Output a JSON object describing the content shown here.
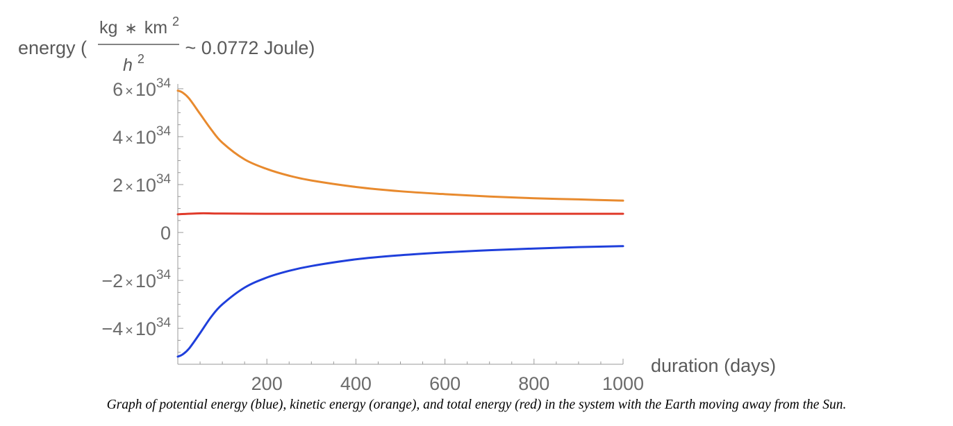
{
  "chart_data": {
    "type": "line",
    "ylabel": {
      "prefix": "energy (",
      "frac_num_main": "kg",
      "frac_num_op": "∗",
      "frac_num_unit": "km",
      "frac_num_exp": "2",
      "frac_den_main": "h",
      "frac_den_exp": "2",
      "suffix": " ~ 0.0772 Joule)"
    },
    "xlabel": "duration (days)",
    "xlim": [
      0,
      1000
    ],
    "ylim": [
      -5.5e+34,
      6.2e+34
    ],
    "x_ticks": [
      {
        "value": 200,
        "label": "200"
      },
      {
        "value": 400,
        "label": "400"
      },
      {
        "value": 600,
        "label": "600"
      },
      {
        "value": 800,
        "label": "800"
      },
      {
        "value": 1000,
        "label": "1000"
      }
    ],
    "y_ticks": [
      {
        "value": 6e+34,
        "mant": "6",
        "times": "×",
        "base": "10",
        "exp": "34"
      },
      {
        "value": 4e+34,
        "mant": "4",
        "times": "×",
        "base": "10",
        "exp": "34"
      },
      {
        "value": 2e+34,
        "mant": "2",
        "times": "×",
        "base": "10",
        "exp": "34"
      },
      {
        "value": 0,
        "mant": "0",
        "times": "",
        "base": "",
        "exp": ""
      },
      {
        "value": -2e+34,
        "mant": "−2",
        "times": "×",
        "base": "10",
        "exp": "34"
      },
      {
        "value": -4e+34,
        "mant": "−4",
        "times": "×",
        "base": "10",
        "exp": "34"
      }
    ],
    "series": [
      {
        "color": "#e88a2e",
        "x": [
          0,
          10,
          25,
          50,
          75,
          100,
          150,
          200,
          250,
          300,
          400,
          500,
          600,
          700,
          800,
          900,
          1000
        ],
        "y": [
          5.92e+34,
          5.85e+34,
          5.6e+34,
          4.95e+34,
          4.3e+34,
          3.75e+34,
          3.05e+34,
          2.65e+34,
          2.37e+34,
          2.17e+34,
          1.9e+34,
          1.72e+34,
          1.6e+34,
          1.5e+34,
          1.43e+34,
          1.38e+34,
          1.33e+34
        ]
      },
      {
        "color": "#e03a2a",
        "x": [
          0,
          50,
          100,
          200,
          400,
          600,
          800,
          1000
        ],
        "y": [
          7.6e+33,
          8e+33,
          7.9e+33,
          7.8e+33,
          7.8e+33,
          7.8e+33,
          7.8e+33,
          7.8e+33
        ]
      },
      {
        "color": "#1f3fdb",
        "x": [
          0,
          10,
          25,
          50,
          75,
          100,
          150,
          200,
          250,
          300,
          400,
          500,
          600,
          700,
          800,
          900,
          1000
        ],
        "y": [
          -5.18e+34,
          -5.1e+34,
          -4.85e+34,
          -4.2e+34,
          -3.52e+34,
          -3e+34,
          -2.3e+34,
          -1.88e+34,
          -1.6e+34,
          -1.4e+34,
          -1.12e+34,
          -9.5e+33,
          -8.3e+33,
          -7.4e+33,
          -6.7e+33,
          -6.1e+33,
          -5.7e+33
        ]
      }
    ]
  },
  "caption": "Graph of potential energy (blue), kinetic energy (orange), and total energy (red) in the system with the Earth moving away from the Sun."
}
